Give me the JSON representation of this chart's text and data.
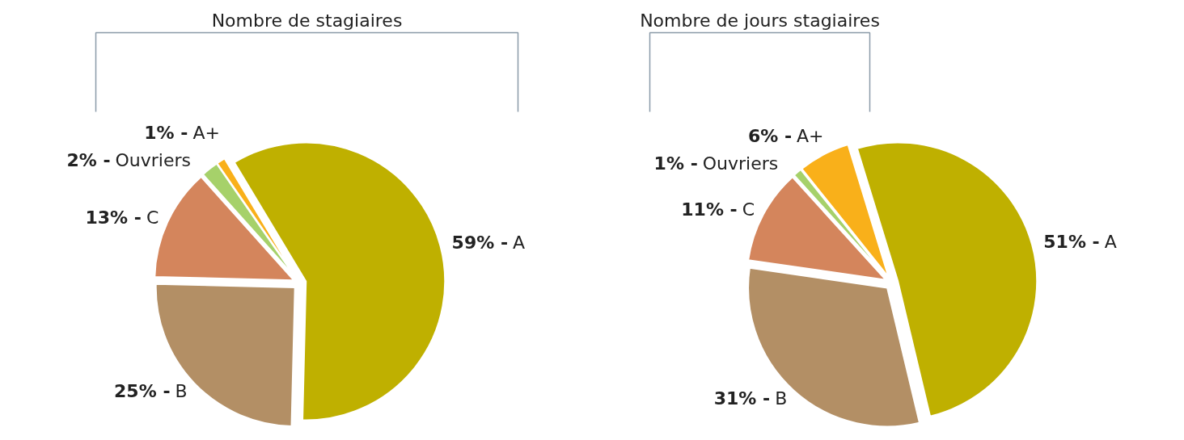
{
  "chart_data": [
    {
      "type": "pie",
      "title": "Nombre de stagiaires",
      "categories": [
        "A",
        "B",
        "C",
        "Ouvriers",
        "A+"
      ],
      "values": [
        59,
        25,
        13,
        2,
        1
      ],
      "value_labels": [
        "59% -",
        "25% -",
        "13% -",
        "2% -",
        "1% -"
      ],
      "colors": [
        "#bfb000",
        "#b38f65",
        "#d4855c",
        "#a6d16a",
        "#f9b01a"
      ],
      "data_labels": true
    },
    {
      "type": "pie",
      "title": "Nombre de jours stagiaires",
      "categories": [
        "A",
        "B",
        "C",
        "Ouvriers",
        "A+"
      ],
      "values": [
        51,
        31,
        11,
        1,
        6
      ],
      "value_labels": [
        "51% -",
        "31% -",
        "11% -",
        "1% -",
        "6% -"
      ],
      "colors": [
        "#bfb000",
        "#b38f65",
        "#d4855c",
        "#a6d16a",
        "#f9b01a"
      ],
      "data_labels": true
    }
  ]
}
